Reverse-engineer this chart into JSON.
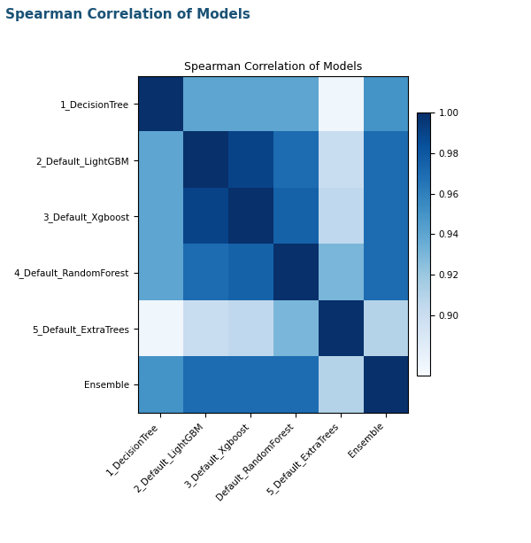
{
  "title": "Spearman Correlation of Models",
  "suptitle": "Spearman Correlation of Models",
  "labels": [
    "1_DecisionTree",
    "2_Default_LightGBM",
    "3_Default_Xgboost",
    "4_Default_RandomForest",
    "5_Default_ExtraTrees",
    "Ensemble"
  ],
  "xlabel_labels": [
    "1_DecisionTree",
    "2_Default_LightGBM",
    "3_Default_Xgboost",
    "Default_RandomForest",
    "5_Default_ExtraTrees",
    "Ensemble"
  ],
  "matrix": [
    [
      1.0,
      0.94,
      0.94,
      0.94,
      0.875,
      0.95
    ],
    [
      0.94,
      1.0,
      0.99,
      0.97,
      0.9,
      0.97
    ],
    [
      0.94,
      0.99,
      1.0,
      0.975,
      0.905,
      0.97
    ],
    [
      0.94,
      0.97,
      0.975,
      1.0,
      0.93,
      0.97
    ],
    [
      0.875,
      0.9,
      0.905,
      0.93,
      1.0,
      0.91
    ],
    [
      0.95,
      0.97,
      0.97,
      0.97,
      0.91,
      1.0
    ]
  ],
  "vmin": 0.87,
  "vmax": 1.0,
  "cmap": "Blues",
  "colorbar_ticks": [
    0.9,
    0.92,
    0.94,
    0.96,
    0.98,
    1.0
  ],
  "title_fontsize": 9,
  "suptitle_fontsize": 11,
  "suptitle_color": "#1a5276",
  "suptitle_fontweight": "bold",
  "tick_fontsize": 7.5,
  "background_color": "#ffffff"
}
